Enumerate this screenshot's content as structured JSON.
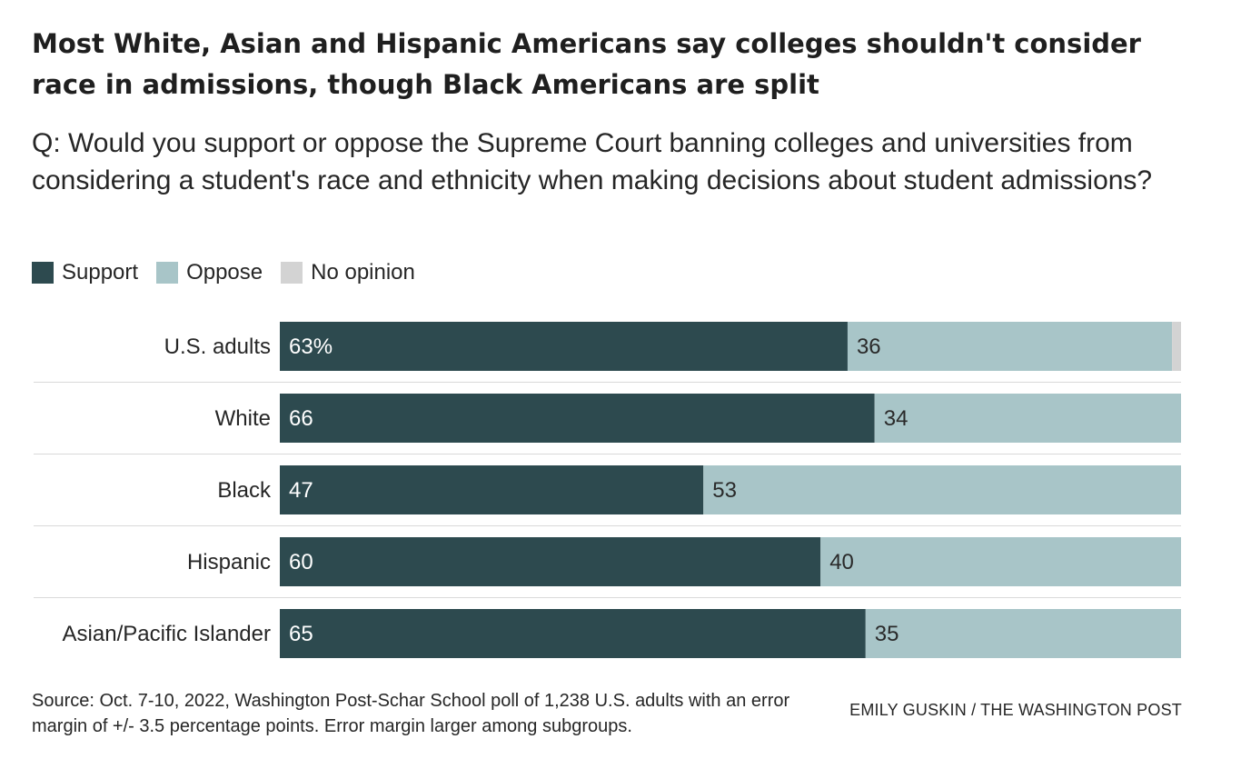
{
  "title": "Most White, Asian and Hispanic Americans say colleges shouldn't consider race in admissions, though Black Americans are split",
  "subtitle": "Q: Would you support or oppose the Supreme Court banning colleges and universities from considering a student's race and ethnicity when making decisions about student admissions?",
  "source": "Source: Oct. 7-10, 2022, Washington Post-Schar School poll of 1,238 U.S. adults with an error margin of +/- 3.5 percentage points. Error margin larger among subgroups.",
  "credit": "EMILY GUSKIN / THE WASHINGTON POST",
  "colors": {
    "support": "#2d4a4f",
    "oppose": "#a8c5c8",
    "no_opinion": "#d3d3d3",
    "divider": "#d9d9d9"
  },
  "chart_data": {
    "type": "bar",
    "orientation": "horizontal",
    "stacked": true,
    "categories": [
      "U.S. adults",
      "White",
      "Black",
      "Hispanic",
      "Asian/Pacific Islander"
    ],
    "series": [
      {
        "name": "Support",
        "values": [
          63,
          66,
          47,
          60,
          65
        ],
        "labels": [
          "63%",
          "66",
          "47",
          "60",
          "65"
        ]
      },
      {
        "name": "Oppose",
        "values": [
          36,
          34,
          53,
          40,
          35
        ],
        "labels": [
          "36",
          "34",
          "53",
          "40",
          "35"
        ]
      },
      {
        "name": "No opinion",
        "values": [
          1,
          0,
          0,
          0,
          0
        ],
        "labels": [
          "",
          "",
          "",
          "",
          ""
        ]
      }
    ],
    "xlim": [
      0,
      100
    ],
    "legend_position": "top-left",
    "grid": false
  }
}
